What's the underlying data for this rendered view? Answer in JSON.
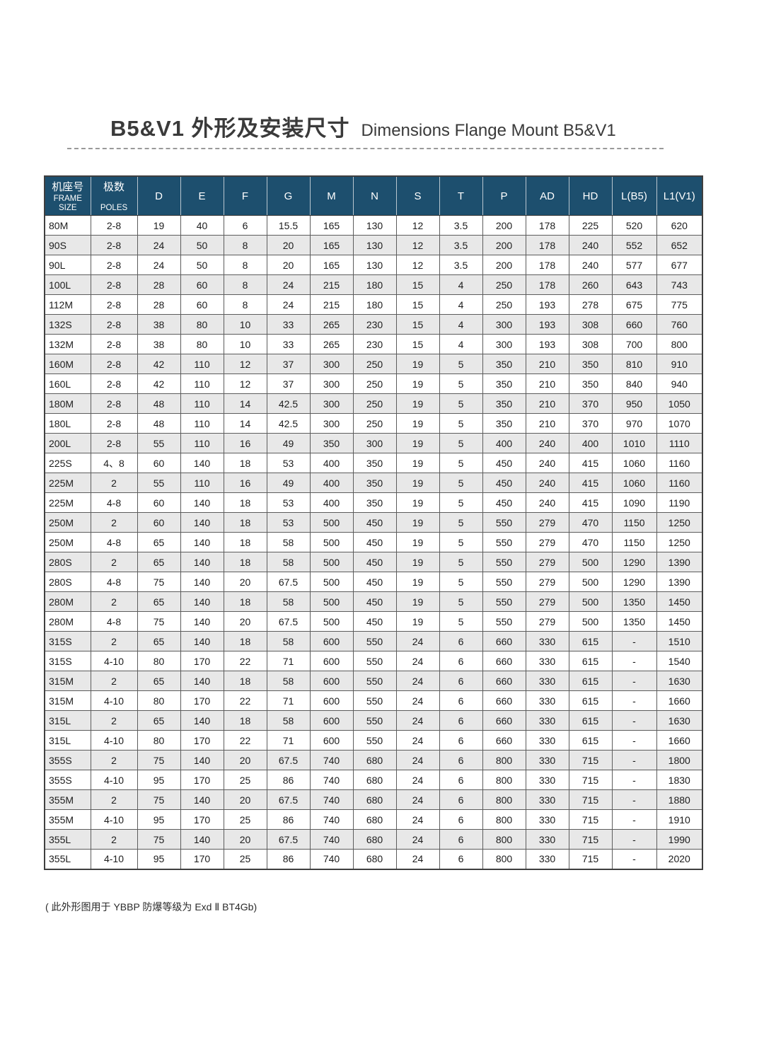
{
  "page": {
    "title_zh": "B5&V1 外形及安装尺寸",
    "title_en": "Dimensions Flange Mount B5&V1",
    "footnote": "( 此外形图用于 YBBP 防爆等级为 Exd Ⅱ BT4Gb)"
  },
  "colors": {
    "header_bg": "#1d4f6e",
    "row_alt_bg": "#e8e8e8",
    "border": "#5c5c5c"
  },
  "table": {
    "header": {
      "frame_size_lines": [
        "机座号",
        "FRAME",
        "SIZE"
      ],
      "poles_lines": [
        "极数",
        "POLES"
      ],
      "dim_columns": [
        "D",
        "E",
        "F",
        "G",
        "M",
        "N",
        "S",
        "T",
        "P",
        "AD",
        "HD",
        "L(B5)",
        "L1(V1)"
      ]
    },
    "rows": [
      [
        "80M",
        "2-8",
        "19",
        "40",
        "6",
        "15.5",
        "165",
        "130",
        "12",
        "3.5",
        "200",
        "178",
        "225",
        "520",
        "620"
      ],
      [
        "90S",
        "2-8",
        "24",
        "50",
        "8",
        "20",
        "165",
        "130",
        "12",
        "3.5",
        "200",
        "178",
        "240",
        "552",
        "652"
      ],
      [
        "90L",
        "2-8",
        "24",
        "50",
        "8",
        "20",
        "165",
        "130",
        "12",
        "3.5",
        "200",
        "178",
        "240",
        "577",
        "677"
      ],
      [
        "100L",
        "2-8",
        "28",
        "60",
        "8",
        "24",
        "215",
        "180",
        "15",
        "4",
        "250",
        "178",
        "260",
        "643",
        "743"
      ],
      [
        "112M",
        "2-8",
        "28",
        "60",
        "8",
        "24",
        "215",
        "180",
        "15",
        "4",
        "250",
        "193",
        "278",
        "675",
        "775"
      ],
      [
        "132S",
        "2-8",
        "38",
        "80",
        "10",
        "33",
        "265",
        "230",
        "15",
        "4",
        "300",
        "193",
        "308",
        "660",
        "760"
      ],
      [
        "132M",
        "2-8",
        "38",
        "80",
        "10",
        "33",
        "265",
        "230",
        "15",
        "4",
        "300",
        "193",
        "308",
        "700",
        "800"
      ],
      [
        "160M",
        "2-8",
        "42",
        "110",
        "12",
        "37",
        "300",
        "250",
        "19",
        "5",
        "350",
        "210",
        "350",
        "810",
        "910"
      ],
      [
        "160L",
        "2-8",
        "42",
        "110",
        "12",
        "37",
        "300",
        "250",
        "19",
        "5",
        "350",
        "210",
        "350",
        "840",
        "940"
      ],
      [
        "180M",
        "2-8",
        "48",
        "110",
        "14",
        "42.5",
        "300",
        "250",
        "19",
        "5",
        "350",
        "210",
        "370",
        "950",
        "1050"
      ],
      [
        "180L",
        "2-8",
        "48",
        "110",
        "14",
        "42.5",
        "300",
        "250",
        "19",
        "5",
        "350",
        "210",
        "370",
        "970",
        "1070"
      ],
      [
        "200L",
        "2-8",
        "55",
        "110",
        "16",
        "49",
        "350",
        "300",
        "19",
        "5",
        "400",
        "240",
        "400",
        "1010",
        "1110"
      ],
      [
        "225S",
        "4、8",
        "60",
        "140",
        "18",
        "53",
        "400",
        "350",
        "19",
        "5",
        "450",
        "240",
        "415",
        "1060",
        "1160"
      ],
      [
        "225M",
        "2",
        "55",
        "110",
        "16",
        "49",
        "400",
        "350",
        "19",
        "5",
        "450",
        "240",
        "415",
        "1060",
        "1160"
      ],
      [
        "225M",
        "4-8",
        "60",
        "140",
        "18",
        "53",
        "400",
        "350",
        "19",
        "5",
        "450",
        "240",
        "415",
        "1090",
        "1190"
      ],
      [
        "250M",
        "2",
        "60",
        "140",
        "18",
        "53",
        "500",
        "450",
        "19",
        "5",
        "550",
        "279",
        "470",
        "1150",
        "1250"
      ],
      [
        "250M",
        "4-8",
        "65",
        "140",
        "18",
        "58",
        "500",
        "450",
        "19",
        "5",
        "550",
        "279",
        "470",
        "1150",
        "1250"
      ],
      [
        "280S",
        "2",
        "65",
        "140",
        "18",
        "58",
        "500",
        "450",
        "19",
        "5",
        "550",
        "279",
        "500",
        "1290",
        "1390"
      ],
      [
        "280S",
        "4-8",
        "75",
        "140",
        "20",
        "67.5",
        "500",
        "450",
        "19",
        "5",
        "550",
        "279",
        "500",
        "1290",
        "1390"
      ],
      [
        "280M",
        "2",
        "65",
        "140",
        "18",
        "58",
        "500",
        "450",
        "19",
        "5",
        "550",
        "279",
        "500",
        "1350",
        "1450"
      ],
      [
        "280M",
        "4-8",
        "75",
        "140",
        "20",
        "67.5",
        "500",
        "450",
        "19",
        "5",
        "550",
        "279",
        "500",
        "1350",
        "1450"
      ],
      [
        "315S",
        "2",
        "65",
        "140",
        "18",
        "58",
        "600",
        "550",
        "24",
        "6",
        "660",
        "330",
        "615",
        "-",
        "1510"
      ],
      [
        "315S",
        "4-10",
        "80",
        "170",
        "22",
        "71",
        "600",
        "550",
        "24",
        "6",
        "660",
        "330",
        "615",
        "-",
        "1540"
      ],
      [
        "315M",
        "2",
        "65",
        "140",
        "18",
        "58",
        "600",
        "550",
        "24",
        "6",
        "660",
        "330",
        "615",
        "-",
        "1630"
      ],
      [
        "315M",
        "4-10",
        "80",
        "170",
        "22",
        "71",
        "600",
        "550",
        "24",
        "6",
        "660",
        "330",
        "615",
        "-",
        "1660"
      ],
      [
        "315L",
        "2",
        "65",
        "140",
        "18",
        "58",
        "600",
        "550",
        "24",
        "6",
        "660",
        "330",
        "615",
        "-",
        "1630"
      ],
      [
        "315L",
        "4-10",
        "80",
        "170",
        "22",
        "71",
        "600",
        "550",
        "24",
        "6",
        "660",
        "330",
        "615",
        "-",
        "1660"
      ],
      [
        "355S",
        "2",
        "75",
        "140",
        "20",
        "67.5",
        "740",
        "680",
        "24",
        "6",
        "800",
        "330",
        "715",
        "-",
        "1800"
      ],
      [
        "355S",
        "4-10",
        "95",
        "170",
        "25",
        "86",
        "740",
        "680",
        "24",
        "6",
        "800",
        "330",
        "715",
        "-",
        "1830"
      ],
      [
        "355M",
        "2",
        "75",
        "140",
        "20",
        "67.5",
        "740",
        "680",
        "24",
        "6",
        "800",
        "330",
        "715",
        "-",
        "1880"
      ],
      [
        "355M",
        "4-10",
        "95",
        "170",
        "25",
        "86",
        "740",
        "680",
        "24",
        "6",
        "800",
        "330",
        "715",
        "-",
        "1910"
      ],
      [
        "355L",
        "2",
        "75",
        "140",
        "20",
        "67.5",
        "740",
        "680",
        "24",
        "6",
        "800",
        "330",
        "715",
        "-",
        "1990"
      ],
      [
        "355L",
        "4-10",
        "95",
        "170",
        "25",
        "86",
        "740",
        "680",
        "24",
        "6",
        "800",
        "330",
        "715",
        "-",
        "2020"
      ]
    ]
  }
}
